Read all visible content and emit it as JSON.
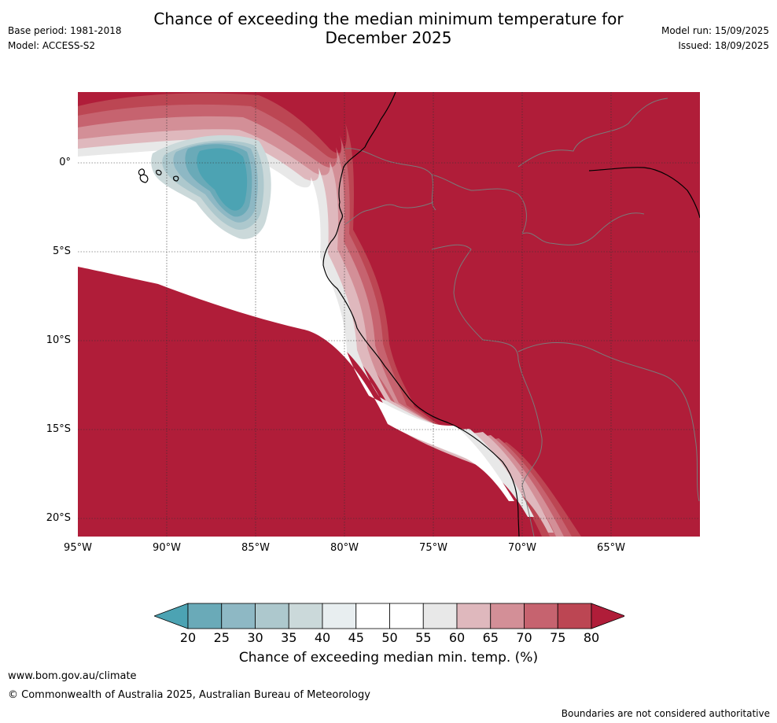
{
  "title_line1": "Chance of exceeding the median minimum temperature for",
  "title_line2": "December 2025",
  "base_period": "Base period: 1981-2018",
  "model": "Model: ACCESS-S2",
  "model_run": "Model run: 15/09/2025",
  "issued": "Issued: 18/09/2025",
  "lat_labels": [
    "0°",
    "5°S",
    "10°S",
    "15°S",
    "20°S"
  ],
  "lon_labels": [
    "95°W",
    "90°W",
    "85°W",
    "80°W",
    "75°W",
    "70°W",
    "65°W"
  ],
  "colorbar": {
    "ticks": [
      "20",
      "25",
      "30",
      "35",
      "40",
      "45",
      "50",
      "55",
      "60",
      "65",
      "70",
      "75",
      "80"
    ],
    "colors": [
      "#4ca3b3",
      "#6aaab8",
      "#8eb8c4",
      "#adc8cd",
      "#cbd9da",
      "#e8eef0",
      "#ffffff",
      "#ffffff",
      "#e8e8e8",
      "#dfb8bd",
      "#d38f97",
      "#c6636f",
      "#bc4653",
      "#b01d39"
    ],
    "label": "Chance of exceeding median min. temp. (%)"
  },
  "footer": {
    "url": "www.bom.gov.au/climate",
    "copyright": "© Commonwealth of Australia 2025, Australian Bureau of Meteorology",
    "disclaimer": "Boundaries are not considered authoritative"
  }
}
